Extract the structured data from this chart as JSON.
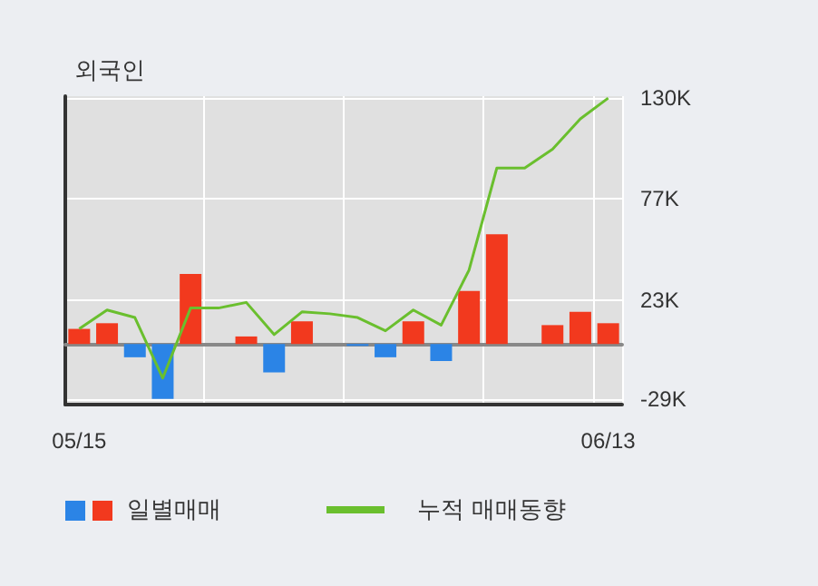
{
  "chart_data": {
    "type": "bar",
    "title": "외국인",
    "categories": [
      "05/15",
      null,
      null,
      null,
      null,
      null,
      null,
      null,
      null,
      null,
      null,
      null,
      null,
      null,
      null,
      null,
      null,
      null,
      null,
      "06/13"
    ],
    "series": [
      {
        "name": "일별매매",
        "values": [
          8000,
          11000,
          -7000,
          -29000,
          37000,
          0,
          4000,
          -15000,
          12000,
          0,
          -1000,
          -7000,
          12000,
          -9000,
          28000,
          58000,
          0,
          10000,
          17000,
          11000
        ],
        "colors": [
          "#f2391e",
          "#f2391e",
          "#2b84e6",
          "#2b84e6",
          "#f2391e",
          "#f2391e",
          "#f2391e",
          "#2b84e6",
          "#f2391e",
          "#f2391e",
          "#2b84e6",
          "#2b84e6",
          "#f2391e",
          "#2b84e6",
          "#f2391e",
          "#f2391e",
          "#f2391e",
          "#f2391e",
          "#f2391e",
          "#f2391e"
        ]
      },
      {
        "name": "누적 매매동향",
        "type": "line",
        "color": "#6abf2e",
        "values": [
          8000,
          18000,
          14000,
          -18000,
          19000,
          19000,
          22000,
          5000,
          17000,
          16000,
          14000,
          7000,
          18000,
          10000,
          39000,
          93000,
          93000,
          103000,
          119000,
          130000
        ]
      }
    ],
    "ylim": [
      -32000,
      131000
    ],
    "yticks": [
      {
        "value": -29000,
        "label": "-29K"
      },
      {
        "value": 23000,
        "label": "23K"
      },
      {
        "value": 77000,
        "label": "77K"
      },
      {
        "value": 130000,
        "label": "130K"
      }
    ],
    "grid": true,
    "legend": "bottom left",
    "marker": "none"
  }
}
